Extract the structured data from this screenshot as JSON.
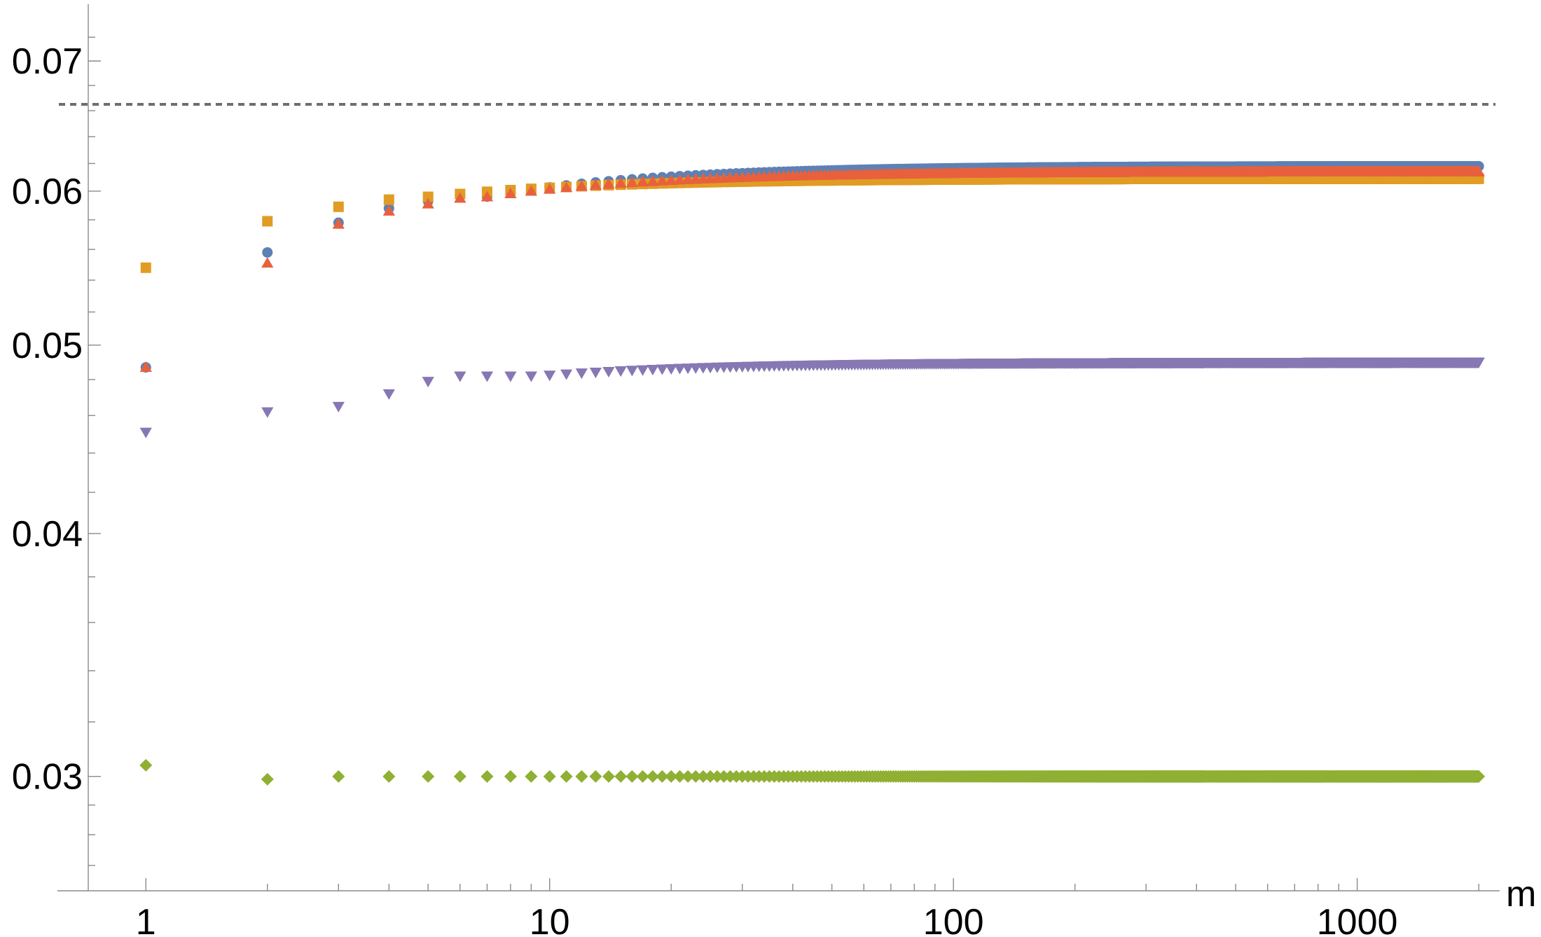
{
  "chart_data": {
    "type": "scatter",
    "title": "",
    "xlabel": "m",
    "ylabel": "",
    "x_scale": "log",
    "y_scale": "log",
    "xlim": [
      0.72,
      2200
    ],
    "ylim": [
      0.0262,
      0.0745
    ],
    "x_ticks": [
      {
        "value": 1,
        "label": "1"
      },
      {
        "value": 10,
        "label": "10"
      },
      {
        "value": 100,
        "label": "100"
      },
      {
        "value": 1000,
        "label": "1000"
      }
    ],
    "y_ticks": [
      {
        "value": 0.03,
        "label": "0.03"
      },
      {
        "value": 0.04,
        "label": "0.04"
      },
      {
        "value": 0.05,
        "label": "0.05"
      },
      {
        "value": 0.06,
        "label": "0.06"
      },
      {
        "value": 0.07,
        "label": "0.07"
      }
    ],
    "grid": false,
    "legend": "none",
    "reference_lines": [
      {
        "axis": "y",
        "value": 0.0665,
        "style": "dashed",
        "color": "#6e6e6e"
      }
    ],
    "m_max": 2000,
    "series": [
      {
        "marker": "circle",
        "color": "#5e81b5",
        "initial": {
          "1": 0.0487,
          "2": 0.0558,
          "3": 0.0578,
          "4": 0.0588,
          "5": 0.0593,
          "6": 0.0597
        },
        "limit": 0.0618,
        "rate": 0.0153,
        "power": 1
      },
      {
        "marker": "square",
        "color": "#e19c24",
        "initial": {
          "1": 0.0548,
          "2": 0.0579,
          "3": 0.0589,
          "4": 0.0594,
          "5": 0.0596,
          "6": 0.0598
        },
        "limit": 0.0609,
        "rate": 0.0066,
        "power": 1
      },
      {
        "marker": "triangle-up",
        "color": "#e8613c",
        "initial": {
          "1": 0.0487,
          "2": 0.0551,
          "3": 0.0577,
          "4": 0.0586,
          "5": 0.0591,
          "6": 0.0595
        },
        "limit": 0.0614,
        "rate": 0.0126,
        "power": 1
      },
      {
        "marker": "triangle-down",
        "color": "#8778b3",
        "initial": {
          "1": 0.0451,
          "2": 0.0462,
          "3": 0.0465,
          "4": 0.0472,
          "5": 0.0479,
          "6": 0.0482,
          "7": 0.0482,
          "8": 0.0482,
          "9": 0.0482
        },
        "limit": 0.049,
        "rate": 0.0075,
        "power": 1
      },
      {
        "marker": "diamond",
        "color": "#8fb032",
        "initial": {
          "1": 0.0304,
          "2": 0.0299,
          "3": 0.03,
          "4": 0.03,
          "5": 0.03,
          "6": 0.03,
          "7": 0.03
        },
        "limit": 0.03,
        "rate": 0,
        "power": 1
      }
    ]
  }
}
